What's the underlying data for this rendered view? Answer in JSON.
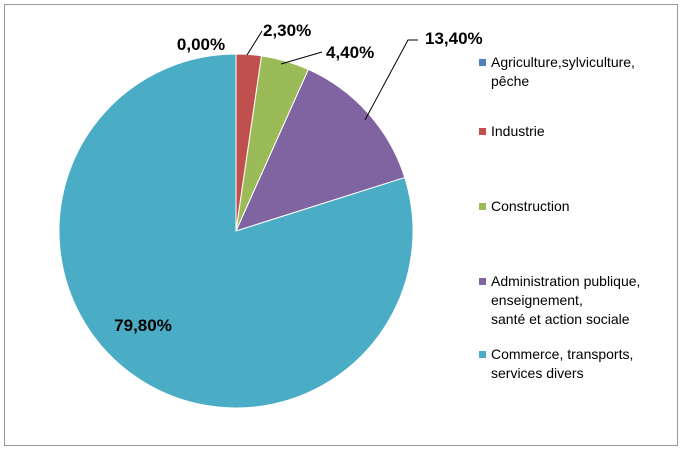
{
  "chart_data": {
    "type": "pie",
    "legend_position": "right",
    "slices": [
      {
        "label_lines": [
          "Agriculture,sylviculture,",
          "pêche"
        ],
        "value": 0.0,
        "value_label": "0,00%",
        "color": "#4F81BD"
      },
      {
        "label_lines": [
          "Industrie"
        ],
        "value": 2.3,
        "value_label": "2,30%",
        "color": "#C0504D"
      },
      {
        "label_lines": [
          "Construction"
        ],
        "value": 4.4,
        "value_label": "4,40%",
        "color": "#9BBB59"
      },
      {
        "label_lines": [
          "Administration publique,",
          "enseignement,",
          "santé et action sociale"
        ],
        "value": 13.4,
        "value_label": "13,40%",
        "color": "#8064A2"
      },
      {
        "label_lines": [
          "Commerce, transports,",
          "services divers"
        ],
        "value": 79.8,
        "value_label": "79,80%",
        "color": "#4BACC6"
      }
    ]
  }
}
